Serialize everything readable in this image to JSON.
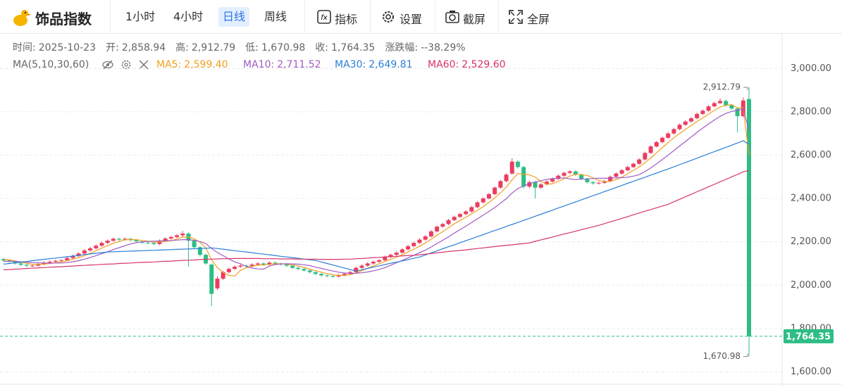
{
  "header": {
    "title": "饰品指数",
    "timeframes": [
      "1小时",
      "4小时",
      "日线",
      "周线"
    ],
    "active_timeframe": 2,
    "tools": [
      "指标",
      "设置",
      "截屏",
      "全屏"
    ]
  },
  "chart_data": {
    "type": "candlestick",
    "info": [
      {
        "label": "时间:",
        "value": "2025-10-23"
      },
      {
        "label": "开:",
        "value": "2,858.94"
      },
      {
        "label": "高:",
        "value": "2,912.79"
      },
      {
        "label": "低:",
        "value": "1,670.98"
      },
      {
        "label": "收:",
        "value": "1,764.35"
      },
      {
        "label": "涨跌幅:",
        "value": "--38.29%"
      }
    ],
    "ma_title": "MA(5,10,30,60)",
    "up_color": "#eb3c5f",
    "down_color": "#2dbd85",
    "ylim": [
      1530,
      3160
    ],
    "yticks": [
      {
        "value": 1600,
        "label": "1,600.00"
      },
      {
        "value": 1800,
        "label": "1,800.00"
      },
      {
        "value": 2000,
        "label": "2,000.00"
      },
      {
        "value": 2200,
        "label": "2,200.00"
      },
      {
        "value": 2400,
        "label": "2,400.00"
      },
      {
        "value": 2600,
        "label": "2,600.00"
      },
      {
        "value": 2800,
        "label": "2,800.00"
      },
      {
        "value": 3000,
        "label": "3,000.00"
      }
    ],
    "grid": true,
    "high_label": "2,912.79",
    "low_label": "1,670.98",
    "last_label": "1,764.35",
    "candles": [
      [
        2120,
        2126,
        2108,
        2114
      ],
      [
        2114,
        2118,
        2102,
        2108
      ],
      [
        2108,
        2112,
        2095,
        2100
      ],
      [
        2100,
        2105,
        2088,
        2094
      ],
      [
        2094,
        2098,
        2084,
        2090
      ],
      [
        2088,
        2096,
        2083,
        2090
      ],
      [
        2090,
        2102,
        2086,
        2096
      ],
      [
        2096,
        2110,
        2092,
        2104
      ],
      [
        2104,
        2114,
        2100,
        2108
      ],
      [
        2108,
        2118,
        2103,
        2112
      ],
      [
        2112,
        2120,
        2106,
        2115
      ],
      [
        2115,
        2131,
        2110,
        2125
      ],
      [
        2125,
        2141,
        2120,
        2135
      ],
      [
        2135,
        2152,
        2130,
        2146
      ],
      [
        2146,
        2166,
        2141,
        2160
      ],
      [
        2160,
        2176,
        2155,
        2170
      ],
      [
        2170,
        2188,
        2165,
        2182
      ],
      [
        2182,
        2201,
        2177,
        2195
      ],
      [
        2195,
        2211,
        2190,
        2205
      ],
      [
        2205,
        2220,
        2200,
        2214
      ],
      [
        2214,
        2219,
        2204,
        2210
      ],
      [
        2210,
        2220,
        2205,
        2214
      ],
      [
        2214,
        2218,
        2202,
        2208
      ],
      [
        2208,
        2212,
        2196,
        2202
      ],
      [
        2202,
        2206,
        2190,
        2196
      ],
      [
        2196,
        2202,
        2189,
        2195
      ],
      [
        2195,
        2200,
        2184,
        2190
      ],
      [
        2190,
        2211,
        2185,
        2205
      ],
      [
        2205,
        2221,
        2200,
        2215
      ],
      [
        2215,
        2228,
        2210,
        2222
      ],
      [
        2222,
        2236,
        2217,
        2230
      ],
      [
        2230,
        2250,
        2222,
        2238
      ],
      [
        2238,
        2244,
        2085,
        2205
      ],
      [
        2205,
        2210,
        2168,
        2175
      ],
      [
        2175,
        2180,
        2132,
        2140
      ],
      [
        2140,
        2145,
        2094,
        2100
      ],
      [
        2095,
        2100,
        1903,
        1960
      ],
      [
        1985,
        2040,
        1978,
        2030
      ],
      [
        2030,
        2066,
        2024,
        2060
      ],
      [
        2060,
        2081,
        2054,
        2075
      ],
      [
        2075,
        2091,
        2070,
        2085
      ],
      [
        2085,
        2096,
        2080,
        2090
      ],
      [
        2090,
        2095,
        2082,
        2088
      ],
      [
        2088,
        2101,
        2083,
        2095
      ],
      [
        2095,
        2106,
        2090,
        2100
      ],
      [
        2100,
        2105,
        2089,
        2095
      ],
      [
        2095,
        2110,
        2090,
        2104
      ],
      [
        2104,
        2108,
        2094,
        2100
      ],
      [
        2100,
        2104,
        2090,
        2096
      ],
      [
        2096,
        2101,
        2084,
        2090
      ],
      [
        2090,
        2095,
        2074,
        2080
      ],
      [
        2080,
        2085,
        2069,
        2075
      ],
      [
        2075,
        2080,
        2062,
        2068
      ],
      [
        2068,
        2073,
        2054,
        2060
      ],
      [
        2060,
        2065,
        2046,
        2052
      ],
      [
        2052,
        2057,
        2039,
        2045
      ],
      [
        2045,
        2050,
        2036,
        2042
      ],
      [
        2042,
        2047,
        2034,
        2040
      ],
      [
        2040,
        2052,
        2035,
        2046
      ],
      [
        2046,
        2058,
        2041,
        2052
      ],
      [
        2052,
        2066,
        2047,
        2060
      ],
      [
        2060,
        2086,
        2055,
        2080
      ],
      [
        2080,
        2096,
        2075,
        2090
      ],
      [
        2090,
        2106,
        2085,
        2100
      ],
      [
        2100,
        2114,
        2095,
        2108
      ],
      [
        2108,
        2121,
        2103,
        2115
      ],
      [
        2115,
        2136,
        2110,
        2130
      ],
      [
        2130,
        2146,
        2125,
        2140
      ],
      [
        2140,
        2156,
        2135,
        2150
      ],
      [
        2150,
        2171,
        2145,
        2165
      ],
      [
        2165,
        2186,
        2160,
        2180
      ],
      [
        2180,
        2201,
        2175,
        2195
      ],
      [
        2195,
        2216,
        2190,
        2210
      ],
      [
        2210,
        2231,
        2205,
        2225
      ],
      [
        2225,
        2254,
        2220,
        2248
      ],
      [
        2248,
        2276,
        2243,
        2270
      ],
      [
        2270,
        2288,
        2265,
        2282
      ],
      [
        2282,
        2306,
        2277,
        2300
      ],
      [
        2300,
        2321,
        2295,
        2315
      ],
      [
        2315,
        2334,
        2310,
        2328
      ],
      [
        2328,
        2346,
        2323,
        2340
      ],
      [
        2340,
        2366,
        2335,
        2360
      ],
      [
        2360,
        2388,
        2355,
        2382
      ],
      [
        2382,
        2406,
        2377,
        2400
      ],
      [
        2400,
        2426,
        2395,
        2420
      ],
      [
        2420,
        2456,
        2415,
        2450
      ],
      [
        2450,
        2486,
        2445,
        2480
      ],
      [
        2480,
        2516,
        2475,
        2510
      ],
      [
        2515,
        2585,
        2510,
        2570
      ],
      [
        2570,
        2575,
        2538,
        2545
      ],
      [
        2545,
        2550,
        2445,
        2455
      ],
      [
        2455,
        2482,
        2448,
        2475
      ],
      [
        2475,
        2480,
        2400,
        2450
      ],
      [
        2450,
        2471,
        2444,
        2465
      ],
      [
        2465,
        2484,
        2460,
        2478
      ],
      [
        2478,
        2496,
        2473,
        2490
      ],
      [
        2490,
        2511,
        2485,
        2505
      ],
      [
        2505,
        2524,
        2500,
        2518
      ],
      [
        2518,
        2531,
        2512,
        2525
      ],
      [
        2525,
        2530,
        2504,
        2510
      ],
      [
        2510,
        2515,
        2484,
        2490
      ],
      [
        2490,
        2495,
        2469,
        2475
      ],
      [
        2475,
        2480,
        2464,
        2470
      ],
      [
        2470,
        2478,
        2464,
        2472
      ],
      [
        2472,
        2486,
        2467,
        2480
      ],
      [
        2480,
        2506,
        2475,
        2500
      ],
      [
        2500,
        2521,
        2495,
        2515
      ],
      [
        2515,
        2536,
        2510,
        2530
      ],
      [
        2530,
        2551,
        2525,
        2545
      ],
      [
        2545,
        2566,
        2540,
        2560
      ],
      [
        2560,
        2586,
        2555,
        2580
      ],
      [
        2580,
        2616,
        2575,
        2610
      ],
      [
        2610,
        2646,
        2605,
        2640
      ],
      [
        2640,
        2666,
        2635,
        2660
      ],
      [
        2660,
        2686,
        2655,
        2680
      ],
      [
        2680,
        2706,
        2675,
        2700
      ],
      [
        2700,
        2726,
        2695,
        2720
      ],
      [
        2720,
        2746,
        2715,
        2740
      ],
      [
        2740,
        2761,
        2735,
        2755
      ],
      [
        2755,
        2776,
        2750,
        2770
      ],
      [
        2770,
        2796,
        2765,
        2790
      ],
      [
        2790,
        2811,
        2785,
        2805
      ],
      [
        2805,
        2831,
        2800,
        2825
      ],
      [
        2825,
        2846,
        2820,
        2840
      ],
      [
        2840,
        2862,
        2835,
        2850
      ],
      [
        2850,
        2856,
        2824,
        2830
      ],
      [
        2830,
        2836,
        2809,
        2815
      ],
      [
        2815,
        2820,
        2705,
        2780
      ],
      [
        2780,
        2866,
        2775,
        2852
      ],
      [
        2858.94,
        2912.79,
        1670.98,
        1764.35
      ]
    ],
    "series": [
      {
        "name": "MA5:",
        "last_label": "2,599.40",
        "color": "#f0a020",
        "values": [
          2120,
          2116,
          2112,
          2106,
          2101,
          2096,
          2096,
          2097,
          2100,
          2104,
          2107,
          2113,
          2119,
          2127,
          2136,
          2147,
          2159,
          2171,
          2182,
          2193,
          2201,
          2210,
          2210,
          2210,
          2206,
          2203,
          2198,
          2200,
          2202,
          2205,
          2213,
          2222,
          2222,
          2214,
          2198,
          2172,
          2116,
          2081,
          2058,
          2045,
          2042,
          2068,
          2080,
          2087,
          2092,
          2094,
          2096,
          2099,
          2099,
          2097,
          2094,
          2088,
          2082,
          2074,
          2067,
          2060,
          2053,
          2048,
          2045,
          2045,
          2048,
          2056,
          2066,
          2078,
          2088,
          2099,
          2109,
          2119,
          2129,
          2140,
          2153,
          2166,
          2180,
          2195,
          2212,
          2230,
          2247,
          2265,
          2283,
          2299,
          2313,
          2329,
          2345,
          2362,
          2382,
          2402,
          2426,
          2452,
          2486,
          2515,
          2512,
          2509,
          2499,
          2478,
          2465,
          2468,
          2478,
          2491,
          2503,
          2512,
          2510,
          2506,
          2496,
          2483,
          2477,
          2479,
          2487,
          2499,
          2514,
          2530,
          2546,
          2565,
          2587,
          2611,
          2634,
          2658,
          2680,
          2700,
          2719,
          2737,
          2755,
          2772,
          2789,
          2807,
          2822,
          2830,
          2833,
          2818,
          2819,
          2599.4
        ]
      },
      {
        "name": "MA10:",
        "last_label": "2,711.52",
        "color": "#a05cc4",
        "values": [
          2110,
          2110,
          2110,
          2108,
          2106,
          2104,
          2103,
          2102,
          2101,
          2102,
          2102,
          2104,
          2108,
          2113,
          2120,
          2127,
          2136,
          2145,
          2154,
          2164,
          2173,
          2182,
          2190,
          2196,
          2200,
          2202,
          2203,
          2204,
          2205,
          2206,
          2208,
          2210,
          2210,
          2207,
          2201,
          2192,
          2169,
          2151,
          2136,
          2121,
          2107,
          2099,
          2087,
          2079,
          2075,
          2074,
          2088,
          2095,
          2098,
          2099,
          2098,
          2097,
          2094,
          2090,
          2083,
          2077,
          2071,
          2065,
          2060,
          2056,
          2054,
          2055,
          2057,
          2061,
          2066,
          2073,
          2081,
          2092,
          2103,
          2114,
          2126,
          2138,
          2150,
          2162,
          2176,
          2192,
          2207,
          2223,
          2240,
          2256,
          2272,
          2289,
          2306,
          2323,
          2340,
          2358,
          2378,
          2399,
          2425,
          2446,
          2457,
          2469,
          2476,
          2482,
          2488,
          2492,
          2494,
          2495,
          2490,
          2487,
          2490,
          2490,
          2492,
          2493,
          2493,
          2494,
          2495,
          2496,
          2498,
          2503,
          2510,
          2524,
          2541,
          2560,
          2580,
          2600,
          2621,
          2642,
          2663,
          2684,
          2705,
          2725,
          2744,
          2762,
          2779,
          2792,
          2802,
          2806,
          2816,
          2711.52
        ]
      },
      {
        "name": "MA30:",
        "last_label": "2,649.81",
        "color": "#2a7fd4",
        "values": [
          2097,
          2100,
          2103,
          2106,
          2109,
          2113,
          2116,
          2119,
          2122,
          2125,
          2128,
          2131,
          2134,
          2137,
          2141,
          2144,
          2147,
          2150,
          2153,
          2154,
          2155,
          2156,
          2157,
          2158,
          2159,
          2160,
          2161,
          2162,
          2163,
          2164,
          2165,
          2166,
          2167,
          2168,
          2169,
          2170,
          2172,
          2169,
          2166,
          2163,
          2159,
          2156,
          2153,
          2150,
          2146,
          2143,
          2140,
          2137,
          2133,
          2130,
          2127,
          2124,
          2120,
          2117,
          2114,
          2107,
          2100,
          2093,
          2086,
          2079,
          2072,
          2065,
          2071,
          2077,
          2083,
          2089,
          2095,
          2101,
          2106,
          2112,
          2118,
          2124,
          2130,
          2139,
          2149,
          2158,
          2168,
          2177,
          2186,
          2196,
          2205,
          2214,
          2224,
          2233,
          2243,
          2252,
          2261,
          2271,
          2280,
          2289,
          2299,
          2308,
          2318,
          2327,
          2337,
          2346,
          2356,
          2365,
          2375,
          2384,
          2394,
          2403,
          2413,
          2422,
          2432,
          2441,
          2451,
          2460,
          2470,
          2479,
          2489,
          2498,
          2508,
          2517,
          2527,
          2536,
          2546,
          2556,
          2566,
          2576,
          2586,
          2596,
          2606,
          2616,
          2626,
          2636,
          2646,
          2656,
          2666,
          2649.81
        ]
      },
      {
        "name": "MA60:",
        "last_label": "2,529.60",
        "color": "#d6336c",
        "values": [
          2071,
          2072,
          2074,
          2075,
          2077,
          2078,
          2080,
          2081,
          2083,
          2084,
          2085,
          2087,
          2088,
          2090,
          2091,
          2093,
          2094,
          2096,
          2097,
          2098,
          2100,
          2101,
          2102,
          2104,
          2105,
          2106,
          2107,
          2109,
          2110,
          2111,
          2113,
          2114,
          2115,
          2116,
          2118,
          2119,
          2120,
          2121,
          2122,
          2122,
          2123,
          2123,
          2123,
          2123,
          2123,
          2122,
          2122,
          2122,
          2121,
          2121,
          2121,
          2120,
          2120,
          2120,
          2120,
          2119,
          2119,
          2119,
          2119,
          2120,
          2120,
          2122,
          2123,
          2125,
          2127,
          2128,
          2130,
          2132,
          2133,
          2135,
          2137,
          2138,
          2140,
          2143,
          2146,
          2149,
          2152,
          2155,
          2158,
          2160,
          2163,
          2166,
          2169,
          2172,
          2175,
          2178,
          2181,
          2184,
          2186,
          2189,
          2192,
          2195,
          2202,
          2209,
          2215,
          2222,
          2229,
          2236,
          2242,
          2249,
          2256,
          2263,
          2269,
          2276,
          2284,
          2292,
          2300,
          2308,
          2316,
          2325,
          2333,
          2341,
          2349,
          2357,
          2365,
          2373,
          2385,
          2396,
          2408,
          2419,
          2431,
          2442,
          2454,
          2465,
          2477,
          2488,
          2500,
          2511,
          2523,
          2529.6
        ]
      }
    ]
  }
}
